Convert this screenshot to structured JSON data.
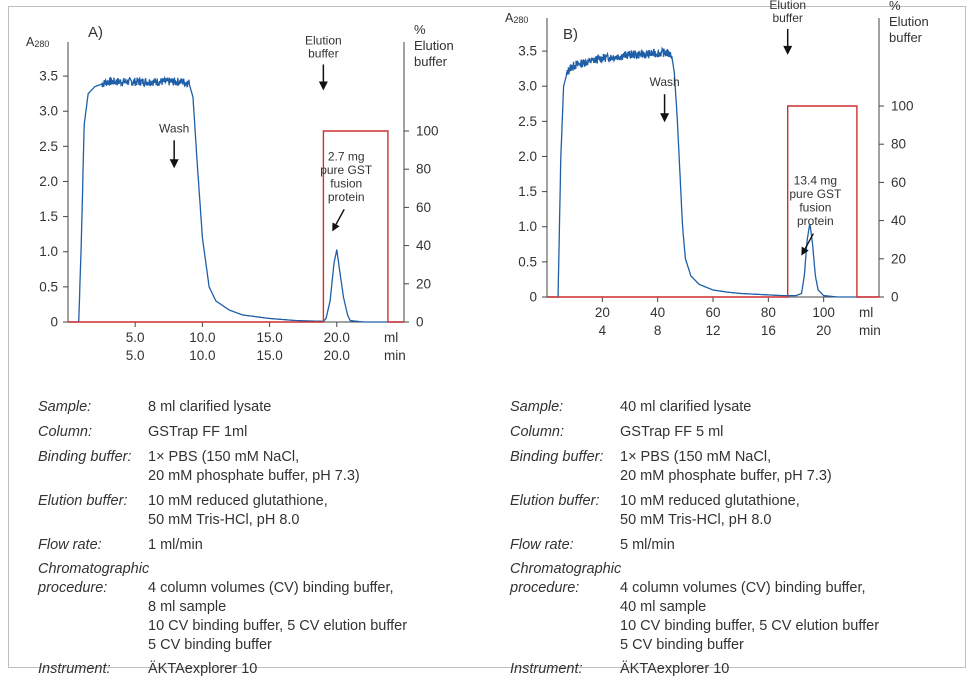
{
  "chart_data": [
    {
      "type": "line",
      "panel_label": "A)",
      "y_left_label": "A",
      "y_left_label_sub": "280",
      "y_right_label": "%\nElution\nbuffer",
      "y_left_ticks": [
        "0",
        "0.5",
        "1.0",
        "1.5",
        "2.0",
        "2.5",
        "3.0",
        "3.5"
      ],
      "y_left_lim": [
        0,
        3.8
      ],
      "y_right_ticks": [
        "0",
        "20",
        "40",
        "60",
        "80",
        "100"
      ],
      "y_right_lim": [
        0,
        100
      ],
      "x_ticks_ml": [
        "5.0",
        "10.0",
        "15.0",
        "20.0"
      ],
      "x_ticks_min": [
        "5.0",
        "10.0",
        "15.0",
        "20.0"
      ],
      "x_unit_ml": "ml",
      "x_unit_min": "min",
      "xlim": [
        0,
        25
      ],
      "series": [
        {
          "type": "absorbance",
          "color": "#1f5fa8",
          "x": [
            0,
            0.3,
            0.8,
            1.0,
            1.2,
            1.5,
            2.0,
            3.0,
            4.0,
            5.0,
            6.0,
            7.0,
            8.0,
            8.5,
            9.0,
            9.3,
            9.6,
            10.0,
            10.5,
            11.0,
            12.0,
            13.0,
            15.0,
            17.0,
            19.0,
            19.2,
            19.5,
            19.8,
            20.0,
            20.2,
            20.5,
            20.8,
            21.0,
            22.0,
            24.0,
            25.0
          ],
          "y": [
            0,
            0,
            0,
            1.2,
            2.8,
            3.25,
            3.35,
            3.42,
            3.42,
            3.42,
            3.42,
            3.42,
            3.42,
            3.42,
            3.4,
            3.2,
            2.3,
            1.2,
            0.5,
            0.3,
            0.17,
            0.1,
            0.05,
            0.02,
            0.01,
            0.05,
            0.3,
            0.85,
            1.03,
            0.75,
            0.35,
            0.1,
            0.02,
            0,
            0,
            0
          ],
          "noise_from": 2.5,
          "noise_to": 9.0,
          "noise_amplitude": 0.06
        },
        {
          "type": "elution_step",
          "color": "#d12f2f",
          "x": [
            0,
            19.0,
            19.0,
            23.8,
            23.8,
            25.0
          ],
          "y_percent": [
            0,
            0,
            100,
            100,
            0,
            0
          ]
        }
      ],
      "annotations": [
        {
          "text": "Wash",
          "x": 7.9,
          "y": 2.7,
          "arrow": "down"
        },
        {
          "text": "Elution\nbuffer",
          "x": 19.0,
          "y": 3.95,
          "arrow": "down"
        },
        {
          "text": "2.7 mg\npure GST\nfusion\nprotein",
          "x": 20.7,
          "y": 2.3,
          "arrow": "diag"
        }
      ]
    },
    {
      "type": "line",
      "panel_label": "B)",
      "y_left_label": "A",
      "y_left_label_sub": "280",
      "y_right_label": "%\nElution\nbuffer",
      "y_left_ticks": [
        "0",
        "0.5",
        "1.0",
        "1.5",
        "2.0",
        "2.5",
        "3.0",
        "3.5"
      ],
      "y_left_lim": [
        0,
        3.8
      ],
      "y_right_ticks": [
        "0",
        "20",
        "40",
        "60",
        "80",
        "100"
      ],
      "y_right_lim": [
        0,
        100
      ],
      "x_ticks_ml": [
        "20",
        "40",
        "60",
        "80",
        "100"
      ],
      "x_ticks_min": [
        "4",
        "8",
        "12",
        "16",
        "20"
      ],
      "x_unit_ml": "ml",
      "x_unit_min": "min",
      "xlim": [
        0,
        120
      ],
      "series": [
        {
          "type": "absorbance",
          "color": "#1f5fa8",
          "x": [
            0,
            2,
            4,
            5,
            6,
            7,
            8,
            10,
            15,
            20,
            25,
            30,
            35,
            40,
            43,
            45,
            46,
            47,
            48,
            49,
            50,
            52,
            55,
            60,
            65,
            70,
            75,
            80,
            85,
            87,
            90,
            92,
            93,
            94,
            95,
            96,
            97,
            98,
            100,
            105,
            110,
            120
          ],
          "y": [
            0,
            0,
            0,
            2.0,
            3.0,
            3.15,
            3.25,
            3.3,
            3.35,
            3.4,
            3.42,
            3.45,
            3.45,
            3.47,
            3.48,
            3.45,
            3.2,
            2.6,
            1.8,
            1.0,
            0.55,
            0.3,
            0.18,
            0.1,
            0.07,
            0.05,
            0.04,
            0.03,
            0.02,
            0.02,
            0.02,
            0.05,
            0.3,
            0.8,
            1.05,
            0.75,
            0.3,
            0.1,
            0.02,
            0,
            0,
            0
          ],
          "noise_from": 7.0,
          "noise_to": 45.0,
          "noise_amplitude": 0.06
        },
        {
          "type": "elution_step",
          "color": "#d12f2f",
          "x": [
            0,
            87,
            87,
            112,
            112,
            120
          ],
          "y_percent": [
            0,
            0,
            100,
            100,
            0,
            0
          ]
        }
      ],
      "annotations": [
        {
          "text": "Wash",
          "x": 42.5,
          "y": 3.0,
          "arrow": "down"
        },
        {
          "text": "Elution\nbuffer",
          "x": 87.0,
          "y": 4.1,
          "arrow": "down"
        },
        {
          "text": "13.4 mg\npure GST\nfusion\nprotein",
          "x": 97.0,
          "y": 1.6,
          "arrow": "diag"
        }
      ]
    }
  ],
  "info": [
    {
      "rows": [
        {
          "label": "Sample:",
          "value": "8 ml clarified lysate"
        },
        {
          "label": "Column:",
          "value": "GSTrap FF 1ml"
        },
        {
          "label": "Binding buffer:",
          "value": "1× PBS (150 mM NaCl,\n20 mM phosphate buffer, pH 7.3)"
        },
        {
          "label": "Elution buffer:",
          "value": "10 mM reduced glutathione,\n50 mM Tris-HCl, pH 8.0"
        },
        {
          "label": "Flow rate:",
          "value": "1 ml/min"
        },
        {
          "label": "Chromatographic",
          "value": ""
        },
        {
          "label": "procedure:",
          "value": "4 column volumes (CV) binding buffer,\n8 ml sample\n10 CV binding buffer, 5 CV elution buffer\n5 CV binding buffer"
        },
        {
          "label": "Instrument:",
          "value": "ÄKTAexplorer 10"
        }
      ]
    },
    {
      "rows": [
        {
          "label": "Sample:",
          "value": "40 ml clarified lysate"
        },
        {
          "label": "Column:",
          "value": "GSTrap FF 5 ml"
        },
        {
          "label": "Binding buffer:",
          "value": "1× PBS (150 mM NaCl,\n20 mM phosphate buffer, pH 7.3)"
        },
        {
          "label": "Elution buffer:",
          "value": "10 mM reduced glutathione,\n50 mM Tris-HCl, pH 8.0"
        },
        {
          "label": "Flow rate:",
          "value": "5 ml/min"
        },
        {
          "label": "Chromatographic",
          "value": ""
        },
        {
          "label": "procedure:",
          "value": "4 column volumes (CV) binding buffer,\n40 ml sample\n10 CV binding buffer, 5 CV elution buffer\n5 CV binding buffer"
        },
        {
          "label": "Instrument:",
          "value": "ÄKTAexplorer 10"
        }
      ]
    }
  ]
}
